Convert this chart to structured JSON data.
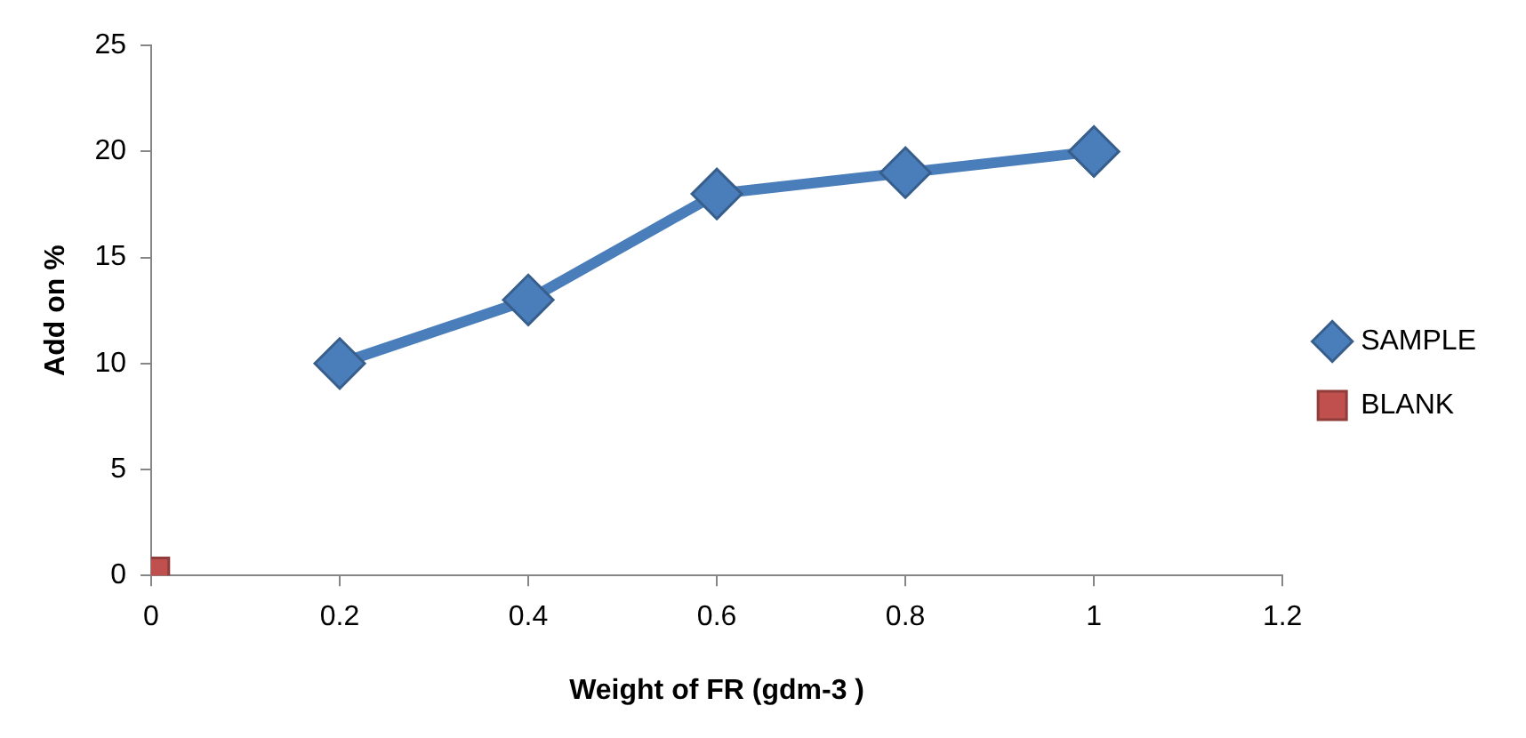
{
  "chart_data": {
    "type": "line",
    "xlabel": "Weight of FR (gdm-3 )",
    "ylabel": "Add on %",
    "xlim": [
      0,
      1.2
    ],
    "xticks": [
      0,
      0.2,
      0.4,
      0.6,
      0.8,
      1,
      1.2
    ],
    "ylim": [
      0,
      25
    ],
    "yticks": [
      0,
      5,
      10,
      15,
      20,
      25
    ],
    "grid": false,
    "legend": "right",
    "line_style": "solid",
    "series": [
      {
        "name": "SAMPLE",
        "color": "#4a7ebb",
        "marker": "diamond",
        "x": [
          0.2,
          0.4,
          0.6,
          0.8,
          1
        ],
        "values": [
          10,
          13,
          18,
          19,
          20
        ]
      },
      {
        "name": "BLANK",
        "color": "#c0504d",
        "marker": "square",
        "x": [
          0
        ],
        "values": [
          0
        ]
      }
    ]
  }
}
